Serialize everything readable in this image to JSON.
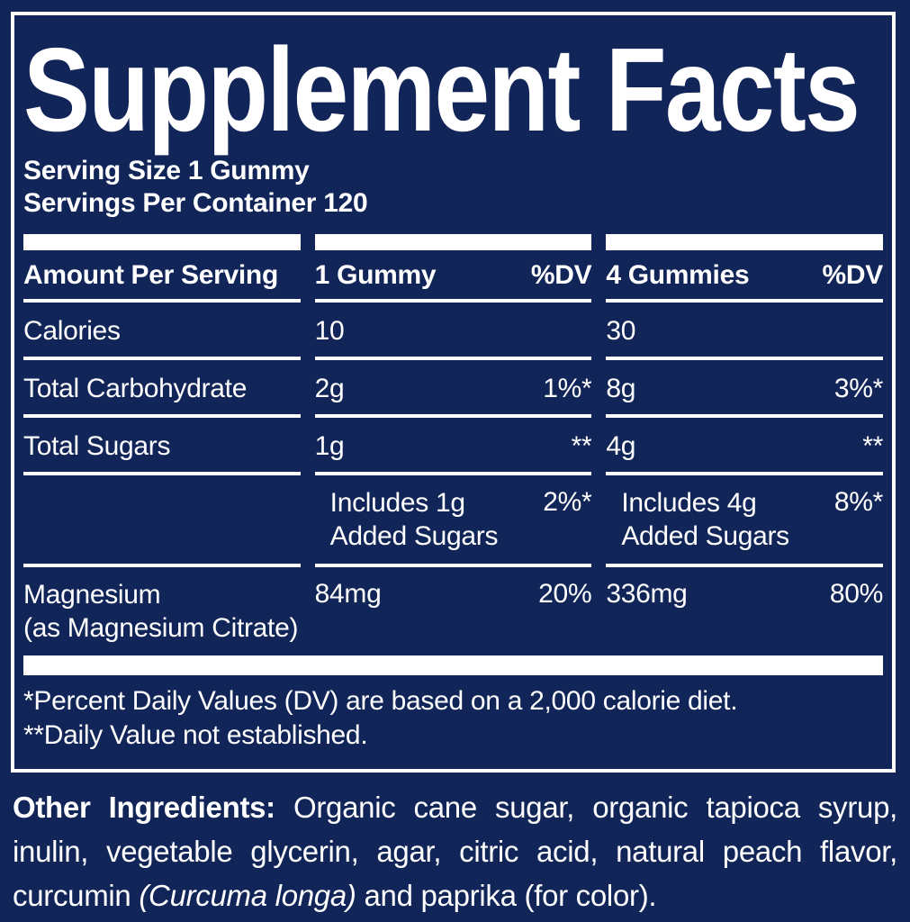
{
  "colors": {
    "background": "#122558",
    "panel_border": "#ffffff",
    "text": "#ffffff"
  },
  "title": "Supplement Facts",
  "serving": {
    "size": "Serving Size 1 Gummy",
    "per_container": "Servings Per Container 120"
  },
  "table": {
    "headers": {
      "col1": "Amount Per Serving",
      "col2": "1 Gummy",
      "col2_dv": "%DV",
      "col3": "4 Gummies",
      "col3_dv": "%DV"
    },
    "rows": [
      {
        "label": "Calories",
        "v1": "10",
        "dv1": "",
        "v2": "30",
        "dv2": ""
      },
      {
        "label": "Total Carbohydrate",
        "v1": "2g",
        "dv1": "1%*",
        "v2": "8g",
        "dv2": "3%*"
      },
      {
        "label": "Total Sugars",
        "v1": "1g",
        "dv1": "**",
        "v2": "4g",
        "dv2": "**"
      },
      {
        "label": "",
        "v1_line1": "Includes 1g",
        "v1_line2": "Added Sugars",
        "dv1": "2%*",
        "v2_line1": "Includes 4g",
        "v2_line2": "Added Sugars",
        "dv2": "8%*"
      },
      {
        "label_line1": "Magnesium",
        "label_line2": "(as Magnesium Citrate)",
        "v1": "84mg",
        "dv1": "20%",
        "v2": "336mg",
        "dv2": "80%"
      }
    ]
  },
  "footnotes": [
    "*Percent Daily Values (DV) are based on a 2,000 calorie diet.",
    "**Daily Value not established."
  ],
  "other_ingredients": {
    "label": "Other Ingredients:",
    "text_part1": " Organic cane sugar, organic tapioca syrup, inulin, vegetable glycerin, agar, citric acid, natural peach flavor, curcumin ",
    "italic": "(Curcuma longa)",
    "text_part2": " and paprika (for color)."
  }
}
